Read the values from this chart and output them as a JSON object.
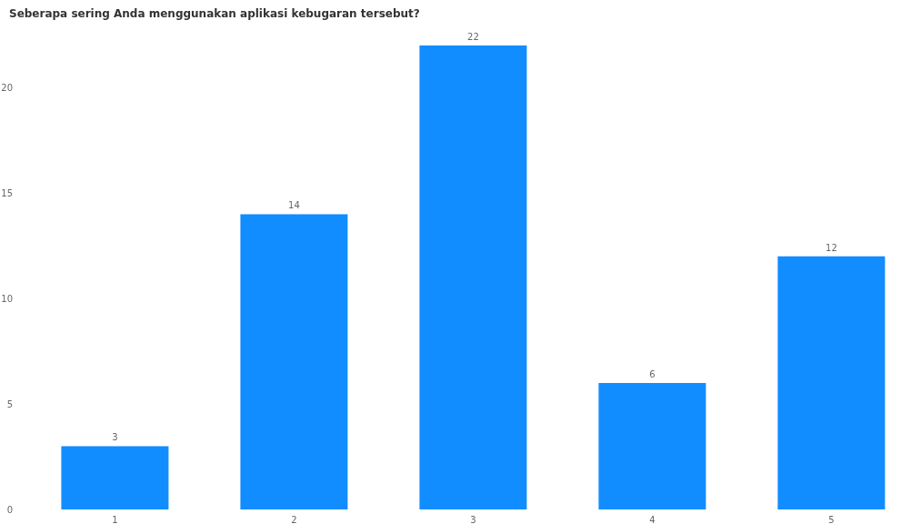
{
  "chart_data": {
    "type": "bar",
    "title": "Seberapa sering Anda menggunakan aplikasi kebugaran tersebut?",
    "categories": [
      "1",
      "2",
      "3",
      "4",
      "5"
    ],
    "values": [
      3,
      14,
      22,
      6,
      12
    ],
    "color": "#118dff",
    "ylim": [
      0,
      22
    ],
    "yticks": [
      0,
      5,
      10,
      15,
      20
    ],
    "grid": false,
    "data_labels": true
  }
}
